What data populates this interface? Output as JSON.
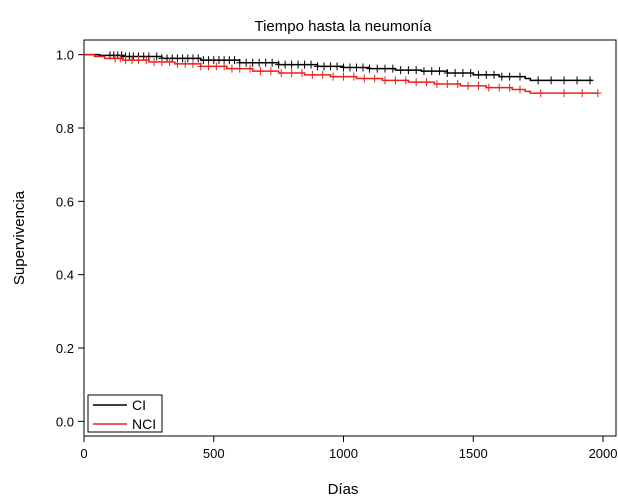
{
  "chart_data": {
    "type": "line",
    "title": "Tiempo hasta la neumonía",
    "xlabel": "Días",
    "ylabel": "Supervivencia",
    "xlim": [
      0,
      2050
    ],
    "ylim": [
      -0.04,
      1.04
    ],
    "xticks": [
      0,
      500,
      1000,
      1500,
      2000
    ],
    "xtick_labels": [
      "0",
      "500",
      "1000",
      "1500",
      "2000"
    ],
    "yticks": [
      0.0,
      0.2,
      0.4,
      0.6,
      0.8,
      1.0
    ],
    "ytick_labels": [
      "0.0",
      "0.2",
      "0.4",
      "0.6",
      "0.8",
      "1.0"
    ],
    "grid": false,
    "legend_position": "bottom-left",
    "series": [
      {
        "name": "CI",
        "color": "#000000",
        "x": [
          0,
          60,
          150,
          300,
          450,
          600,
          750,
          900,
          1000,
          1100,
          1200,
          1300,
          1400,
          1500,
          1600,
          1700,
          1720,
          1800,
          1960
        ],
        "y": [
          1.0,
          0.998,
          0.995,
          0.99,
          0.985,
          0.978,
          0.973,
          0.968,
          0.965,
          0.962,
          0.958,
          0.955,
          0.95,
          0.945,
          0.94,
          0.935,
          0.93,
          0.93,
          0.93
        ],
        "censor_x": [
          100,
          115,
          130,
          145,
          160,
          175,
          190,
          210,
          230,
          250,
          280,
          300,
          320,
          340,
          360,
          380,
          400,
          420,
          440,
          460,
          480,
          500,
          520,
          540,
          560,
          580,
          600,
          625,
          650,
          675,
          700,
          725,
          750,
          775,
          800,
          825,
          850,
          875,
          900,
          925,
          950,
          975,
          1000,
          1025,
          1050,
          1075,
          1100,
          1130,
          1160,
          1190,
          1220,
          1250,
          1280,
          1310,
          1340,
          1370,
          1400,
          1430,
          1460,
          1490,
          1520,
          1550,
          1580,
          1610,
          1640,
          1680,
          1750,
          1800,
          1850,
          1900,
          1950
        ]
      },
      {
        "name": "NCI",
        "color": "#e8211d",
        "x": [
          0,
          40,
          80,
          150,
          250,
          350,
          450,
          550,
          650,
          750,
          850,
          950,
          1050,
          1150,
          1250,
          1350,
          1450,
          1550,
          1650,
          1700,
          1720,
          1800,
          1980
        ],
        "y": [
          1.0,
          0.995,
          0.99,
          0.985,
          0.98,
          0.975,
          0.968,
          0.962,
          0.955,
          0.95,
          0.945,
          0.94,
          0.935,
          0.93,
          0.925,
          0.92,
          0.915,
          0.91,
          0.905,
          0.9,
          0.895,
          0.895,
          0.895
        ],
        "censor_x": [
          120,
          140,
          160,
          185,
          210,
          240,
          270,
          300,
          330,
          360,
          390,
          420,
          450,
          480,
          510,
          540,
          570,
          600,
          640,
          680,
          720,
          760,
          800,
          840,
          880,
          920,
          960,
          1000,
          1040,
          1080,
          1120,
          1160,
          1200,
          1240,
          1280,
          1320,
          1360,
          1400,
          1440,
          1480,
          1520,
          1560,
          1600,
          1640,
          1680,
          1760,
          1850,
          1920,
          1980
        ]
      }
    ]
  }
}
